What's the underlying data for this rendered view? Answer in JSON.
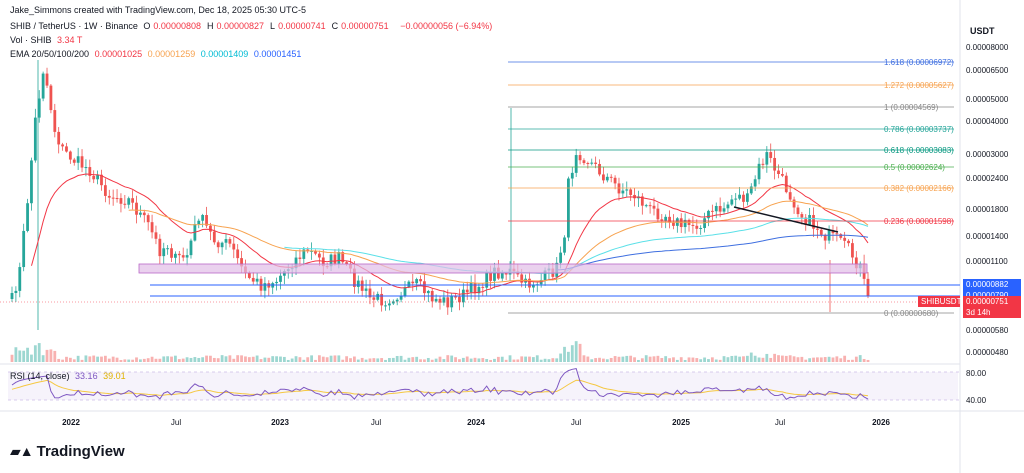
{
  "header": {
    "credit": "Jake_Simmons created with TradingView.com, Dec 18, 2025 05:30 UTC-5",
    "symbol": "SHIB / TetherUS · 1W · Binance",
    "ohlc": [
      {
        "k": "O",
        "v": "0.00000808"
      },
      {
        "k": "H",
        "v": "0.00000827"
      },
      {
        "k": "L",
        "v": "0.00000741"
      },
      {
        "k": "C",
        "v": "0.00000751"
      }
    ],
    "change": "−0.00000056 (−6.94%)",
    "vol_label": "Vol · SHIB",
    "vol_value": "3.34 T",
    "ema_label": "EMA 20/50/100/200",
    "ema_values": [
      "0.00001025",
      "0.00001259",
      "0.00001409",
      "0.00001451"
    ]
  },
  "colors": {
    "up": "#26a69a",
    "down": "#ef5350",
    "ema20": "#f23645",
    "ema50": "#f7a350",
    "ema100": "#5be0e8",
    "ema200": "#3f6fe0",
    "rsi": "#7e57c2",
    "rsi_ma": "#f5c842"
  },
  "chart_data": {
    "type": "candlestick",
    "title": "SHIB / TetherUS · 1W · Binance",
    "yaxis_unit": "USDT",
    "yscale": "log",
    "ylim": [
      4.4e-06,
      8.8e-06
    ],
    "price_ticks": [
      "0.00008000",
      "0.00006500",
      "0.00005000",
      "0.00004000",
      "0.00003000",
      "0.00002400",
      "0.00001800",
      "0.00001400",
      "0.00001100",
      "0.00000580",
      "0.00000480"
    ],
    "time_ticks": [
      "2022",
      "Jul",
      "2023",
      "Jul",
      "2024",
      "Jul",
      "2025",
      "Jul",
      "2026"
    ],
    "fib_levels": [
      {
        "label": "1.618 (0.00006972)",
        "value": 6.972e-05,
        "color": "#3f6fe0"
      },
      {
        "label": "1.272 (0.00005627)",
        "value": 5.627e-05,
        "color": "#f7a350"
      },
      {
        "label": "1 (0.00004569)",
        "value": 4.569e-05,
        "color": "#888888"
      },
      {
        "label": "0.786 (0.00003737)",
        "value": 3.737e-05,
        "color": "#26a69a"
      },
      {
        "label": "0.618 (0.00003083)",
        "value": 3.083e-05,
        "color": "#089981"
      },
      {
        "label": "0.5 (0.00002624)",
        "value": 2.624e-05,
        "color": "#4caf50"
      },
      {
        "label": "0.382 (0.00002166)",
        "value": 2.166e-05,
        "color": "#f7a350"
      },
      {
        "label": "0.236 (0.00001598)",
        "value": 1.598e-05,
        "color": "#f23645"
      },
      {
        "label": "0 (0.00000680)",
        "value": 6.8e-06,
        "color": "#888888"
      }
    ],
    "support_lines": [
      8.82e-06,
      7.9e-06
    ],
    "price_labels": [
      {
        "text": "0.00000882",
        "color": "#2962ff"
      },
      {
        "text": "0.00000790",
        "color": "#2962ff"
      },
      {
        "text": "SHIBUSDT",
        "color": "#f23645"
      },
      {
        "text": "0.00000751",
        "color": "#f23645"
      },
      {
        "text": "3d 14h",
        "color": "#f23645"
      }
    ],
    "rsi": {
      "label": "RSI (14, close)",
      "value": "33.16",
      "ma": "39.01",
      "ticks": [
        "80.00",
        "40.00"
      ]
    }
  }
}
